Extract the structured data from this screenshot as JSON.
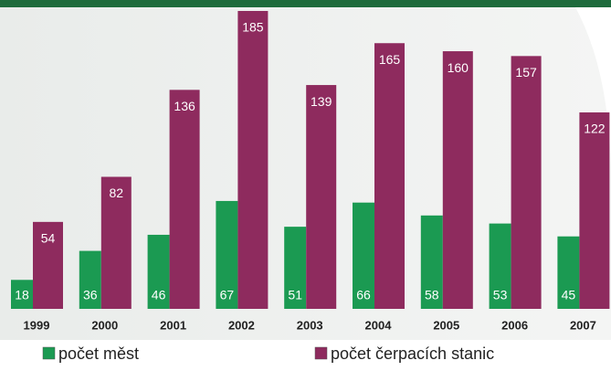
{
  "chart_data": {
    "type": "bar",
    "categories": [
      "1999",
      "2000",
      "2001",
      "2002",
      "2003",
      "2004",
      "2005",
      "2006",
      "2007"
    ],
    "series": [
      {
        "name": "počet měst",
        "color": "#1b9a52",
        "values": [
          18,
          36,
          46,
          67,
          51,
          66,
          58,
          53,
          45
        ]
      },
      {
        "name": "počet čerpacích stanic",
        "color": "#8e2b5e",
        "values": [
          54,
          82,
          136,
          185,
          139,
          165,
          160,
          157,
          122
        ]
      }
    ],
    "legend": "bottom"
  }
}
